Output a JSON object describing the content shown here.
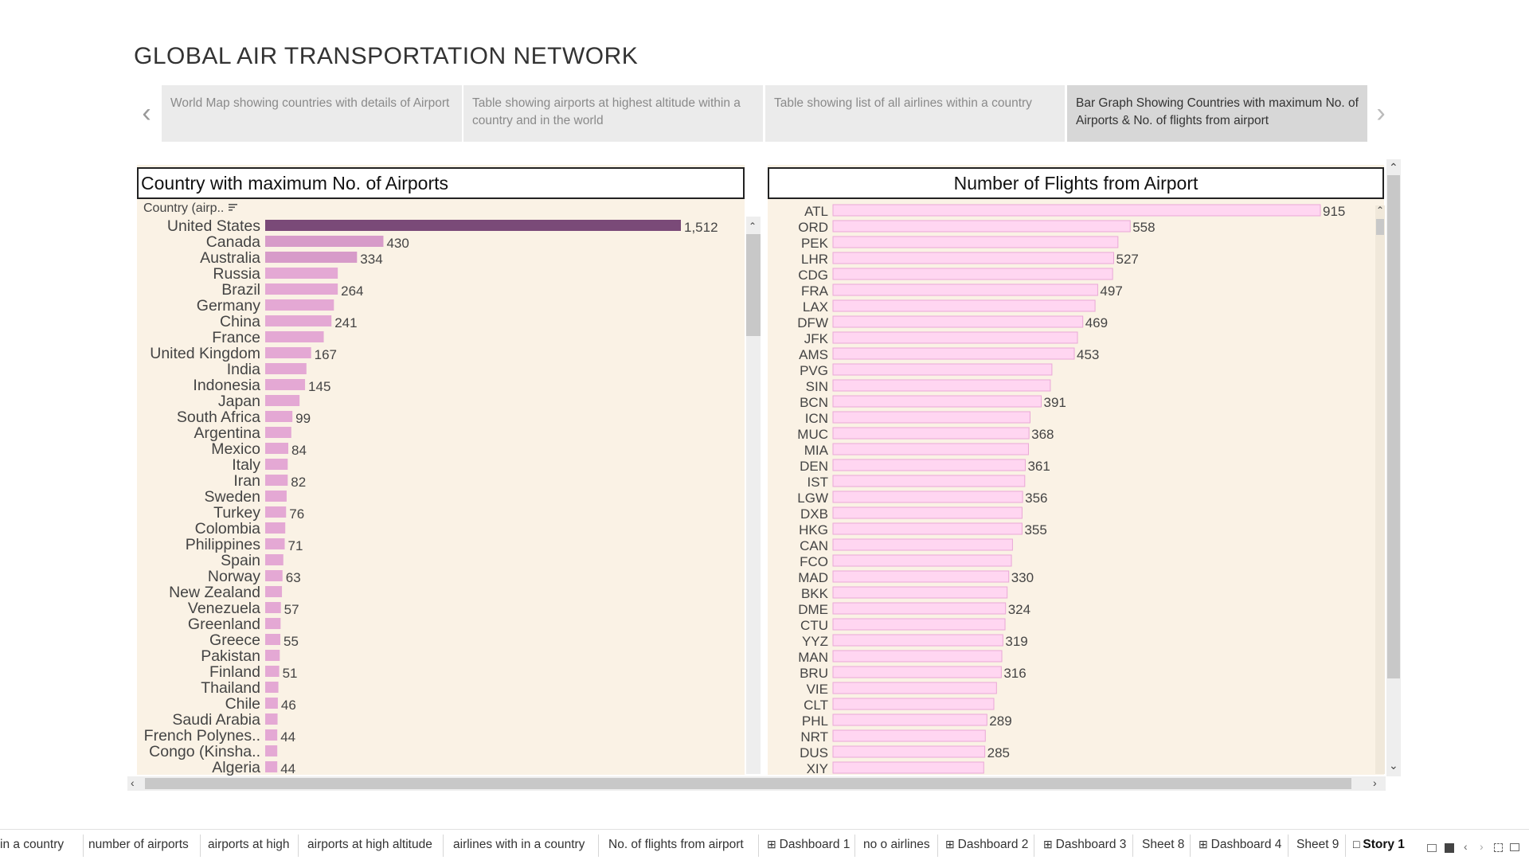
{
  "page": {
    "title": "GLOBAL AIR TRANSPORTATION NETWORK"
  },
  "story": {
    "points": [
      {
        "label": "World Map showing countries with details of Airport"
      },
      {
        "label": "Table showing airports at highest altitude within a country and in the world"
      },
      {
        "label": "Table showing list of all airlines within a country"
      },
      {
        "label": "Bar Graph Showing Countries with maximum No. of Airports & No. of flights from airport"
      }
    ],
    "active_index": 3
  },
  "left_panel": {
    "title": "Country with maximum No. of Airports",
    "header": "Country (airp..",
    "sort_icon": "sort-desc-icon"
  },
  "right_panel": {
    "title": "Number of Flights from Airport"
  },
  "colors": {
    "left_top_bar": "#7a4a78",
    "left_bar": "#e4a8d4",
    "left_bar_mid": "#d79bc9",
    "right_bar_fill": "#ffd6f1",
    "right_bar_border": "#e9a8d6",
    "panel_bg": "#faf2e5"
  },
  "chart_data": [
    {
      "type": "bar",
      "orientation": "horizontal",
      "title": "Country with maximum No. of Airports",
      "ylabel": "Country (airp..",
      "xlim": [
        0,
        1512
      ],
      "categories": [
        "United States",
        "Canada",
        "Australia",
        "Russia",
        "Brazil",
        "Germany",
        "China",
        "France",
        "United Kingdom",
        "India",
        "Indonesia",
        "Japan",
        "South Africa",
        "Argentina",
        "Mexico",
        "Italy",
        "Iran",
        "Sweden",
        "Turkey",
        "Colombia",
        "Philippines",
        "Spain",
        "Norway",
        "New Zealand",
        "Venezuela",
        "Greenland",
        "Greece",
        "Pakistan",
        "Finland",
        "Thailand",
        "Chile",
        "Saudi Arabia",
        "French Polynes..",
        "Congo (Kinsha..",
        "Algeria"
      ],
      "values": [
        1512,
        430,
        334,
        264,
        264,
        250,
        241,
        213,
        167,
        150,
        145,
        125,
        99,
        95,
        84,
        82,
        82,
        78,
        76,
        73,
        71,
        66,
        63,
        61,
        57,
        56,
        55,
        53,
        51,
        48,
        46,
        45,
        44,
        44,
        44
      ],
      "labels": [
        "1,512",
        "430",
        "334",
        "",
        "264",
        "",
        "241",
        "",
        "167",
        "",
        "145",
        "",
        "99",
        "",
        "84",
        "",
        "82",
        "",
        "76",
        "",
        "71",
        "",
        "63",
        "",
        "57",
        "",
        "55",
        "",
        "51",
        "",
        "46",
        "",
        "44",
        "",
        "44"
      ]
    },
    {
      "type": "bar",
      "orientation": "horizontal",
      "title": "Number of Flights from Airport",
      "xlim": [
        0,
        915
      ],
      "categories": [
        "ATL",
        "ORD",
        "PEK",
        "LHR",
        "CDG",
        "FRA",
        "LAX",
        "DFW",
        "JFK",
        "AMS",
        "PVG",
        "SIN",
        "BCN",
        "ICN",
        "MUC",
        "MIA",
        "DEN",
        "IST",
        "LGW",
        "DXB",
        "HKG",
        "CAN",
        "FCO",
        "MAD",
        "BKK",
        "DME",
        "CTU",
        "YYZ",
        "MAN",
        "BRU",
        "VIE",
        "CLT",
        "PHL",
        "NRT",
        "DUS",
        "XIY"
      ],
      "values": [
        915,
        558,
        535,
        527,
        525,
        497,
        492,
        469,
        459,
        453,
        411,
        408,
        391,
        370,
        368,
        367,
        361,
        360,
        356,
        355,
        355,
        337,
        335,
        330,
        327,
        324,
        323,
        319,
        317,
        316,
        307,
        302,
        289,
        286,
        285,
        283
      ],
      "labels": [
        "915",
        "558",
        "",
        "527",
        "",
        "497",
        "",
        "469",
        "",
        "453",
        "",
        "",
        "391",
        "",
        "368",
        "",
        "361",
        "",
        "356",
        "",
        "355",
        "",
        "",
        "330",
        "",
        "324",
        "",
        "319",
        "",
        "316",
        "",
        "",
        "289",
        "",
        "285",
        ""
      ]
    }
  ],
  "tabs": [
    {
      "label": "in a country"
    },
    {
      "label": "number of airports"
    },
    {
      "label": "airports at high"
    },
    {
      "label": "airports at high altitude"
    },
    {
      "label": "airlines  with in a country"
    },
    {
      "label": "No. of flights from airport"
    },
    {
      "label": "Dashboard 1",
      "icon": "dashboard-grid-icon"
    },
    {
      "label": "no o airlines"
    },
    {
      "label": "Dashboard 2",
      "icon": "dashboard-grid-icon"
    },
    {
      "label": "Dashboard 3",
      "icon": "dashboard-grid-icon"
    },
    {
      "label": "Sheet 8"
    },
    {
      "label": "Dashboard 4",
      "icon": "dashboard-grid-icon"
    },
    {
      "label": "Sheet 9"
    },
    {
      "label": "Story 1",
      "icon": "story-book-icon",
      "active": true
    }
  ]
}
